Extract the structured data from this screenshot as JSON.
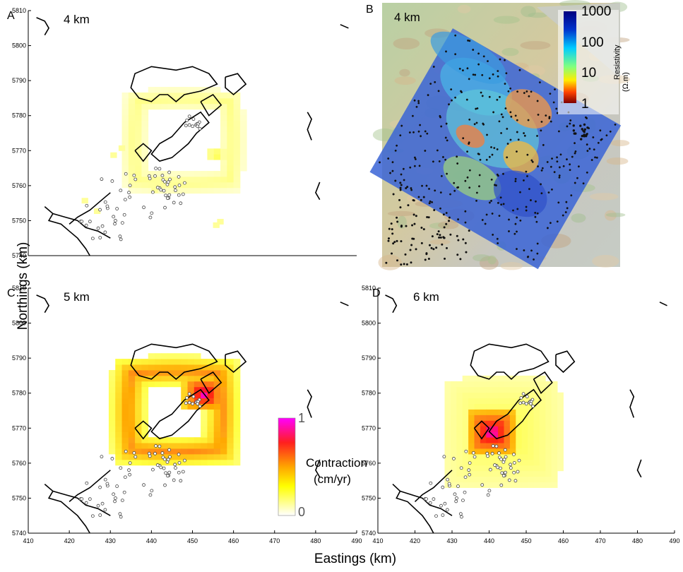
{
  "figure": {
    "ylabel": "Northings (km)",
    "xlabel": "Eastings (km)"
  },
  "panels": [
    {
      "letter": "A",
      "depth": "4 km",
      "type": "contraction_map"
    },
    {
      "letter": "B",
      "depth": "4 km",
      "type": "resistivity_map"
    },
    {
      "letter": "C",
      "depth": "5 km",
      "type": "contraction_map"
    },
    {
      "letter": "D",
      "depth": "6 km",
      "type": "contraction_map"
    }
  ],
  "axes": {
    "x_ticks": [
      "410",
      "420",
      "430",
      "440",
      "450",
      "460",
      "470",
      "480",
      "490"
    ],
    "y_ticks": [
      "5810",
      "5800",
      "5790",
      "5780",
      "5770",
      "5760",
      "5750",
      "5740"
    ]
  },
  "resistivity_colorbar": {
    "title": "Resistivity",
    "unit": "(Ω.m)",
    "tick_labels": [
      "1000",
      "100",
      "10",
      "1"
    ]
  },
  "contraction_colorbar": {
    "title": "Contraction",
    "unit": "(cm/yr)",
    "tick_labels": [
      "1",
      "0"
    ]
  },
  "chart_data": [
    {
      "type": "heatmap",
      "panel": "A",
      "title": "4 km",
      "xlim": [
        410,
        490
      ],
      "ylim": [
        5740,
        5810
      ],
      "xlabel": "Eastings (km)",
      "ylabel": "Northings (km)",
      "value_range": [
        0,
        1
      ],
      "description_of_values": "contraction rate, low (0-0.35) ring around caldera",
      "rings": [
        {
          "center": [
            447,
            5772
          ],
          "radius_inner": 9,
          "radius_outer": 15,
          "value": 0.22
        },
        {
          "center": [
            455,
            5768
          ],
          "radius_inner": 0,
          "radius_outer": 2,
          "value": 0.35
        }
      ]
    },
    {
      "type": "heatmap",
      "panel": "B",
      "title": "4 km",
      "quantity": "resistivity",
      "value_range_ohm_m": [
        1,
        1000
      ],
      "scale": "log"
    },
    {
      "type": "heatmap",
      "panel": "C",
      "title": "5 km",
      "xlim": [
        410,
        490
      ],
      "ylim": [
        5740,
        5810
      ],
      "value_range": [
        0,
        1
      ],
      "rings": [
        {
          "center": [
            445,
            5774
          ],
          "radius_inner": 7,
          "radius_outer": 16,
          "value": 0.65
        },
        {
          "center": [
            452,
            5779
          ],
          "radius_inner": 0,
          "radius_outer": 5,
          "value": 1.0
        }
      ]
    },
    {
      "type": "heatmap",
      "panel": "D",
      "title": "6 km",
      "xlim": [
        410,
        490
      ],
      "ylim": [
        5740,
        5810
      ],
      "value_range": [
        0,
        1
      ],
      "rings": [
        {
          "center": [
            443,
            5768
          ],
          "radius_inner": 0,
          "radius_outer": 16,
          "value": 0.35
        },
        {
          "center": [
            440,
            5768
          ],
          "radius_inner": 0,
          "radius_outer": 7,
          "value": 1.0
        }
      ]
    }
  ]
}
